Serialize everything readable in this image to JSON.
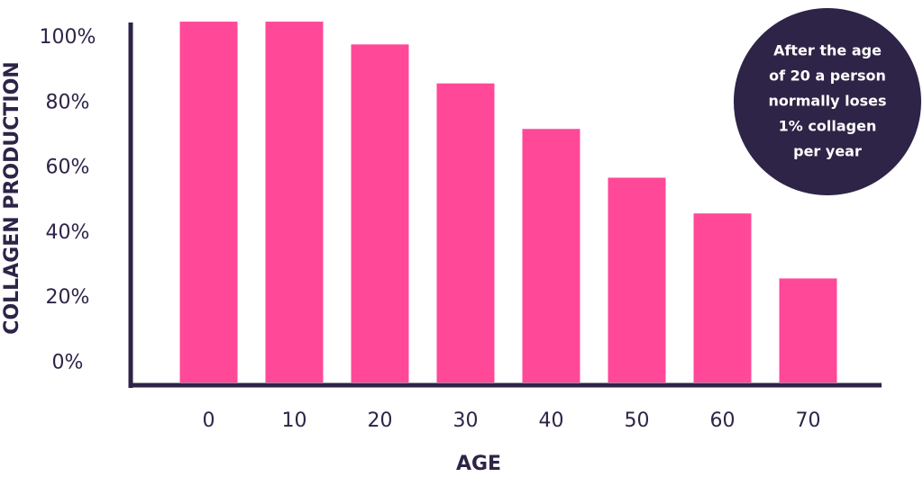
{
  "chart_data": {
    "type": "bar",
    "categories": [
      "0",
      "10",
      "20",
      "30",
      "40",
      "50",
      "60",
      "70"
    ],
    "values": [
      105,
      105,
      98,
      86,
      72,
      57,
      46,
      26
    ],
    "color": "#ff4898",
    "xlabel": "AGE",
    "ylabel": "COLLAGEN PRODUCTION",
    "ylim": [
      -6,
      110
    ],
    "yticks": [
      {
        "value": 0,
        "label": "0%"
      },
      {
        "value": 20,
        "label": "20%"
      },
      {
        "value": 40,
        "label": "40%"
      },
      {
        "value": 60,
        "label": "60%"
      },
      {
        "value": 80,
        "label": "80%"
      },
      {
        "value": 100,
        "label": "100%"
      }
    ],
    "grid": false,
    "annotation": [
      "After the age",
      "of 20 a person",
      "normally loses",
      "1% collagen",
      "per year"
    ]
  }
}
